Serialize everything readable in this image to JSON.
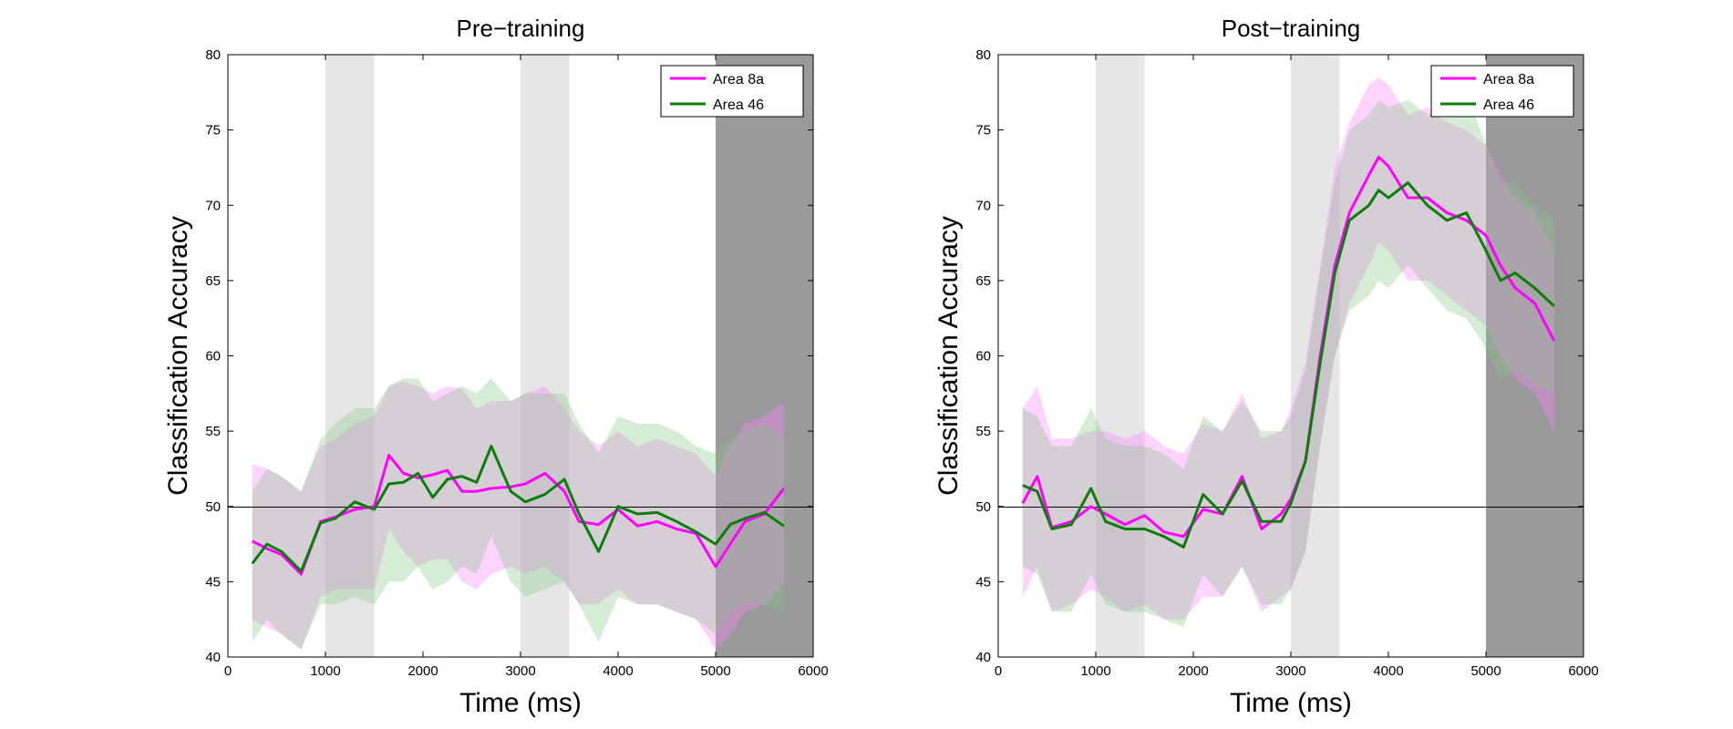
{
  "chart_data": [
    {
      "type": "line",
      "title": "Pre−training",
      "xlabel": "Time (ms)",
      "ylabel": "Classification Accuracy",
      "xlim": [
        0,
        6000
      ],
      "ylim": [
        40,
        80
      ],
      "xticks": [
        0,
        1000,
        2000,
        3000,
        4000,
        5000,
        6000
      ],
      "yticks": [
        40,
        45,
        50,
        55,
        60,
        65,
        70,
        75,
        80
      ],
      "legend_position": "top-right",
      "reference_line_y": 50,
      "light_shaded_intervals": [
        [
          1000,
          1500
        ],
        [
          3000,
          3500
        ]
      ],
      "dark_shaded_intervals": [
        [
          5000,
          6000
        ]
      ],
      "series": [
        {
          "name": "Area 8a",
          "color": "#ff00ff",
          "band_color": "#ff80ff",
          "x": [
            250,
            400,
            550,
            750,
            950,
            1100,
            1300,
            1500,
            1650,
            1800,
            1950,
            2100,
            2250,
            2400,
            2550,
            2700,
            2900,
            3050,
            3250,
            3450,
            3600,
            3800,
            4000,
            4200,
            4400,
            4600,
            4800,
            5000,
            5150,
            5300,
            5500,
            5700
          ],
          "y": [
            47.7,
            47.2,
            46.8,
            45.5,
            49.0,
            49.3,
            49.8,
            50.0,
            53.4,
            52.2,
            51.9,
            52.1,
            52.4,
            51.0,
            51.0,
            51.2,
            51.3,
            51.5,
            52.2,
            51.0,
            49.0,
            48.8,
            49.8,
            48.7,
            49.0,
            48.5,
            48.2,
            46.0,
            47.5,
            49.0,
            49.5,
            51.2
          ],
          "upper": [
            52.8,
            52.5,
            52.0,
            51.0,
            54.0,
            54.5,
            55.5,
            56.0,
            58.0,
            58.3,
            58.0,
            57.5,
            58.0,
            57.8,
            56.5,
            57.0,
            57.0,
            57.5,
            58.0,
            56.5,
            55.0,
            54.0,
            55.0,
            54.0,
            54.5,
            54.0,
            53.5,
            52.0,
            54.0,
            55.5,
            56.0,
            57.0
          ],
          "lower": [
            42.5,
            42.0,
            41.5,
            40.5,
            44.0,
            44.5,
            44.5,
            44.5,
            48.5,
            47.0,
            46.0,
            46.5,
            46.5,
            45.0,
            44.5,
            45.5,
            46.0,
            45.5,
            46.0,
            45.0,
            43.5,
            43.5,
            44.5,
            43.5,
            43.5,
            43.0,
            42.5,
            40.5,
            41.5,
            43.0,
            43.5,
            45.0
          ]
        },
        {
          "name": "Area 46",
          "color": "#0b7d0b",
          "band_color": "#88c888",
          "x": [
            250,
            400,
            550,
            750,
            950,
            1100,
            1300,
            1500,
            1650,
            1800,
            1950,
            2100,
            2250,
            2400,
            2550,
            2700,
            2900,
            3050,
            3250,
            3450,
            3600,
            3800,
            4000,
            4200,
            4400,
            4600,
            4800,
            5000,
            5150,
            5300,
            5500,
            5700
          ],
          "y": [
            46.2,
            47.5,
            47.0,
            45.7,
            48.9,
            49.2,
            50.3,
            49.8,
            51.5,
            51.6,
            52.2,
            50.6,
            51.8,
            52.0,
            51.6,
            54.0,
            51.0,
            50.3,
            50.8,
            51.8,
            49.5,
            47.0,
            50.0,
            49.5,
            49.6,
            49.0,
            48.3,
            47.5,
            48.8,
            49.2,
            49.6,
            48.7
          ],
          "upper": [
            51.0,
            52.5,
            52.0,
            51.0,
            54.5,
            55.5,
            56.5,
            56.5,
            58.0,
            58.5,
            58.5,
            57.0,
            57.5,
            58.0,
            57.5,
            58.5,
            57.0,
            57.5,
            57.5,
            57.5,
            55.5,
            53.5,
            56.0,
            55.5,
            55.5,
            55.0,
            54.0,
            53.5,
            54.5,
            55.0,
            55.5,
            54.5
          ],
          "lower": [
            41.0,
            42.5,
            41.5,
            40.5,
            43.5,
            43.5,
            44.0,
            43.5,
            45.0,
            45.0,
            46.0,
            44.5,
            45.0,
            46.0,
            45.5,
            48.0,
            45.0,
            44.0,
            44.5,
            45.0,
            43.5,
            41.0,
            44.0,
            43.5,
            43.5,
            43.0,
            42.5,
            41.5,
            43.0,
            43.5,
            43.5,
            43.0
          ]
        }
      ]
    },
    {
      "type": "line",
      "title": "Post−training",
      "xlabel": "Time (ms)",
      "ylabel": "Classification Accuracy",
      "xlim": [
        0,
        6000
      ],
      "ylim": [
        40,
        80
      ],
      "xticks": [
        0,
        1000,
        2000,
        3000,
        4000,
        5000,
        6000
      ],
      "yticks": [
        40,
        45,
        50,
        55,
        60,
        65,
        70,
        75,
        80
      ],
      "legend_position": "top-right",
      "reference_line_y": 50,
      "light_shaded_intervals": [
        [
          1000,
          1500
        ],
        [
          3000,
          3500
        ]
      ],
      "dark_shaded_intervals": [
        [
          5000,
          6000
        ]
      ],
      "series": [
        {
          "name": "Area 8a",
          "color": "#ff00ff",
          "band_color": "#ff80ff",
          "x": [
            250,
            400,
            550,
            750,
            950,
            1100,
            1300,
            1500,
            1700,
            1900,
            2100,
            2300,
            2500,
            2700,
            2900,
            3000,
            3150,
            3300,
            3450,
            3600,
            3800,
            3900,
            4000,
            4200,
            4400,
            4600,
            4800,
            5000,
            5150,
            5300,
            5500,
            5700
          ],
          "y": [
            50.2,
            52.0,
            48.6,
            49.0,
            50.0,
            49.5,
            48.8,
            49.4,
            48.3,
            48.0,
            49.8,
            49.5,
            52.0,
            48.5,
            49.5,
            50.5,
            53.0,
            60.0,
            66.0,
            69.5,
            72.0,
            73.2,
            72.6,
            70.5,
            70.5,
            69.5,
            69.0,
            68.0,
            66.0,
            64.5,
            63.5,
            61.0
          ],
          "upper": [
            56.5,
            58.0,
            54.5,
            54.5,
            55.0,
            55.0,
            54.5,
            55.0,
            54.0,
            53.5,
            55.5,
            55.0,
            57.5,
            54.5,
            55.0,
            56.5,
            59.5,
            66.0,
            72.5,
            75.5,
            78.0,
            78.5,
            78.0,
            76.0,
            76.5,
            75.5,
            75.0,
            74.0,
            72.0,
            70.5,
            69.5,
            67.0
          ],
          "lower": [
            44.0,
            46.0,
            43.0,
            43.5,
            44.5,
            44.0,
            43.0,
            43.5,
            42.5,
            42.5,
            44.0,
            44.0,
            46.0,
            43.0,
            44.0,
            44.5,
            47.0,
            54.0,
            60.0,
            63.5,
            66.0,
            67.5,
            67.0,
            65.0,
            65.0,
            64.0,
            63.0,
            62.0,
            60.0,
            58.5,
            57.5,
            55.0
          ]
        },
        {
          "name": "Area 46",
          "color": "#0b7d0b",
          "band_color": "#88c888",
          "x": [
            250,
            400,
            550,
            750,
            950,
            1100,
            1300,
            1500,
            1700,
            1900,
            2100,
            2300,
            2500,
            2700,
            2900,
            3000,
            3150,
            3300,
            3450,
            3600,
            3800,
            3900,
            4000,
            4200,
            4400,
            4600,
            4800,
            5000,
            5150,
            5300,
            5500,
            5700
          ],
          "y": [
            51.4,
            51.0,
            48.5,
            48.8,
            51.2,
            49.0,
            48.5,
            48.5,
            48.0,
            47.3,
            50.8,
            49.5,
            51.7,
            49.0,
            49.0,
            50.2,
            53.0,
            59.5,
            65.5,
            69.0,
            70.0,
            71.0,
            70.5,
            71.5,
            70.0,
            69.0,
            69.5,
            67.0,
            65.0,
            65.5,
            64.5,
            63.3
          ],
          "upper": [
            56.5,
            56.0,
            54.0,
            54.0,
            56.5,
            54.5,
            54.0,
            54.0,
            53.5,
            52.5,
            56.0,
            55.0,
            57.0,
            55.0,
            55.0,
            56.0,
            59.0,
            65.5,
            71.5,
            75.0,
            76.0,
            77.0,
            76.5,
            77.0,
            76.0,
            76.5,
            77.5,
            74.0,
            71.5,
            71.5,
            70.0,
            69.0
          ],
          "lower": [
            46.0,
            45.5,
            43.0,
            43.0,
            45.5,
            43.5,
            43.0,
            43.0,
            42.5,
            42.0,
            45.5,
            44.0,
            46.0,
            43.5,
            43.5,
            44.5,
            47.0,
            54.0,
            60.0,
            63.0,
            64.0,
            65.0,
            64.5,
            66.0,
            64.5,
            63.0,
            62.5,
            60.5,
            58.5,
            59.0,
            58.0,
            57.5
          ]
        }
      ]
    }
  ]
}
